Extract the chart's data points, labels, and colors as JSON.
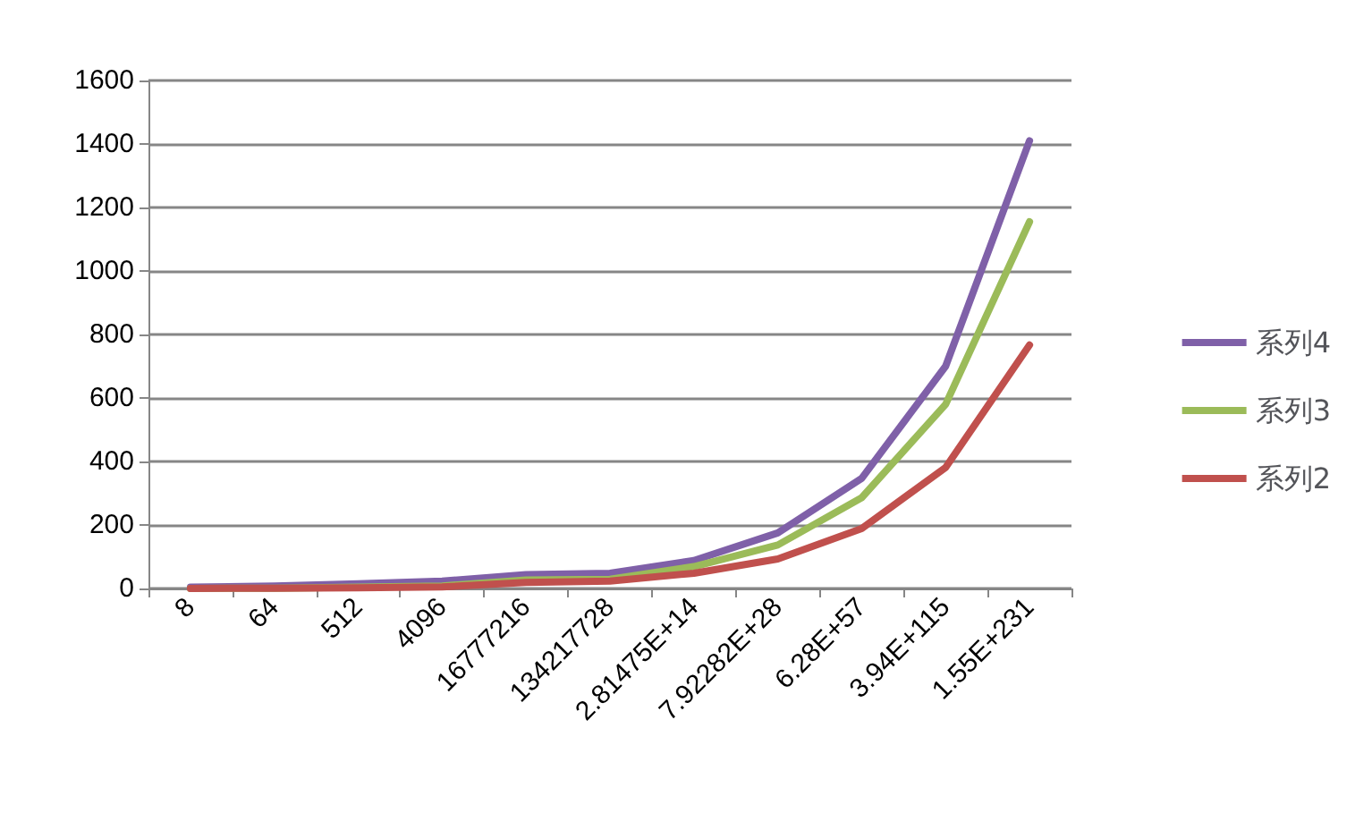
{
  "chart_data": {
    "type": "line",
    "categories": [
      "8",
      "64",
      "512",
      "4096",
      "16777216",
      "134217728",
      "2.81475E+14",
      "7.92282E+28",
      "6.28E+57",
      "3.94E+115",
      "1.55E+231"
    ],
    "series": [
      {
        "name": "系列4",
        "color": "#7f60a8",
        "values": [
          4,
          8,
          15,
          23,
          44,
          48,
          88,
          175,
          347,
          700,
          1410
        ]
      },
      {
        "name": "系列3",
        "color": "#9bbb59",
        "values": [
          0,
          1,
          4,
          8,
          27,
          29,
          69,
          137,
          286,
          580,
          1155
        ]
      },
      {
        "name": "系列2",
        "color": "#c0504d",
        "values": [
          0,
          1,
          2,
          5,
          19,
          23,
          48,
          93,
          189,
          381,
          767
        ]
      }
    ],
    "ylim": [
      0,
      1600
    ],
    "yticks": [
      0,
      200,
      400,
      600,
      800,
      1000,
      1200,
      1400,
      1600
    ],
    "grid": "y",
    "legend": "right",
    "marker": "none",
    "line_style": "solid"
  }
}
